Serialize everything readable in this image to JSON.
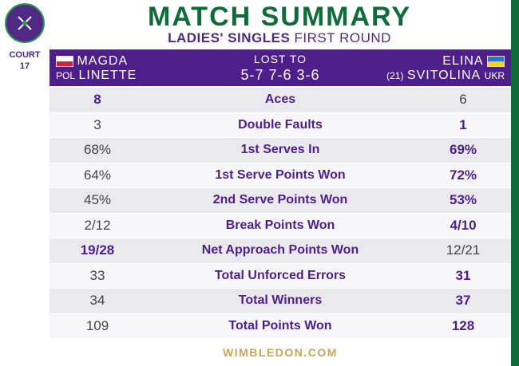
{
  "header": {
    "title": "MATCH SUMMARY",
    "subtitle_bold": "LADIES' SINGLES",
    "subtitle_rest": "FIRST ROUND",
    "court_label": "COURT",
    "court_number": "17"
  },
  "players": {
    "left": {
      "first": "MAGDA",
      "last": "LINETTE",
      "country": "POL",
      "flag": "pol-flag-icon"
    },
    "right": {
      "first": "ELINA",
      "last": "SVITOLINA",
      "seed": "(21)",
      "country": "UKR",
      "flag": "ukr-flag-icon"
    },
    "result_label": "LOST TO",
    "score": "5-7 7-6 3-6"
  },
  "stats": [
    {
      "label": "Aces",
      "left": "8",
      "right": "6",
      "winner": "left"
    },
    {
      "label": "Double Faults",
      "left": "3",
      "right": "1",
      "winner": "right"
    },
    {
      "label": "1st Serves In",
      "left": "68%",
      "right": "69%",
      "winner": "right"
    },
    {
      "label": "1st Serve Points Won",
      "left": "64%",
      "right": "72%",
      "winner": "right"
    },
    {
      "label": "2nd Serve Points Won",
      "left": "45%",
      "right": "53%",
      "winner": "right"
    },
    {
      "label": "Break Points Won",
      "left": "2/12",
      "right": "4/10",
      "winner": "right"
    },
    {
      "label": "Net Approach Points Won",
      "left": "19/28",
      "right": "12/21",
      "winner": "left"
    },
    {
      "label": "Total Unforced Errors",
      "left": "33",
      "right": "31",
      "winner": "right"
    },
    {
      "label": "Total Winners",
      "left": "34",
      "right": "37",
      "winner": "right"
    },
    {
      "label": "Total Points Won",
      "left": "109",
      "right": "128",
      "winner": "right"
    }
  ],
  "footer": {
    "site": "WIMBLEDON.COM"
  },
  "colors": {
    "purple": "#4e1f8a",
    "green": "#0f6b3a",
    "gold": "#c9a55a"
  }
}
